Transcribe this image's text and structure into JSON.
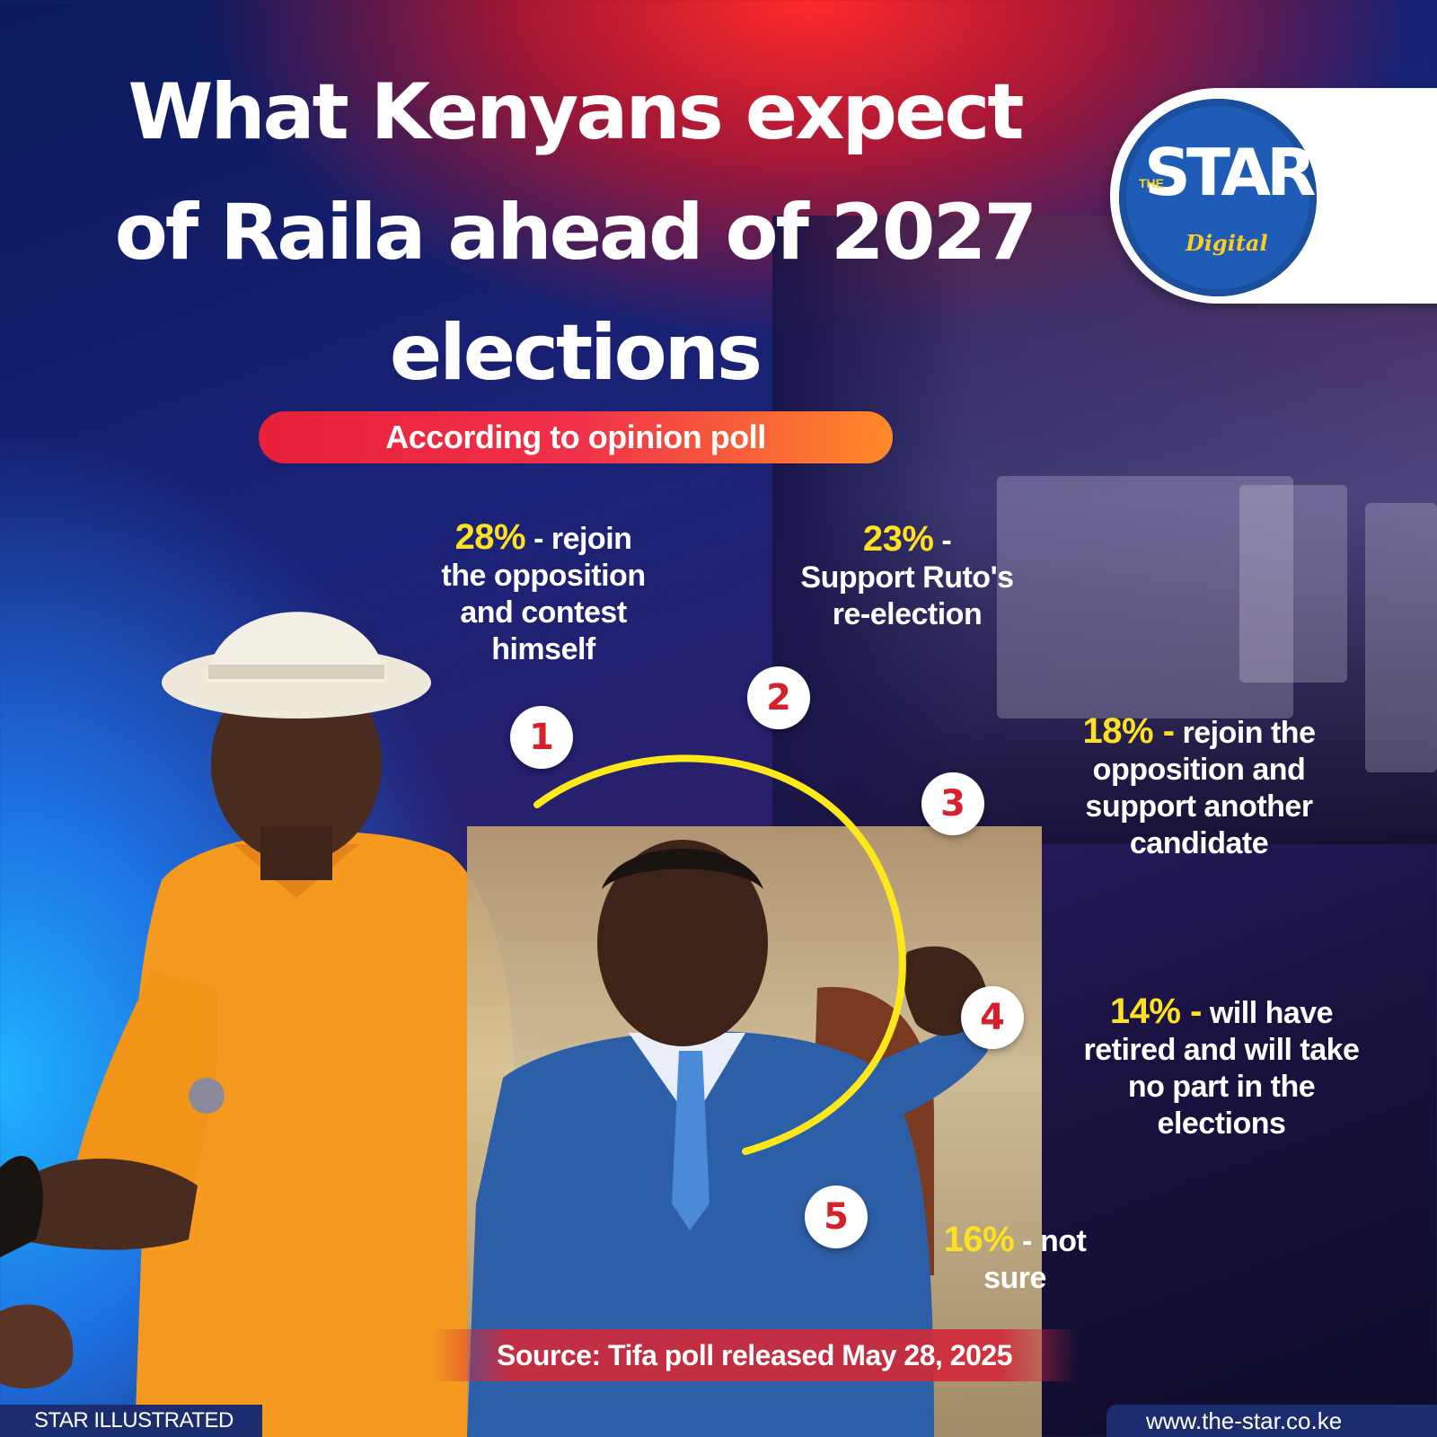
{
  "title": {
    "line1": "What Kenyans expect",
    "line2": "of Raila ahead of 2027",
    "line3": "elections"
  },
  "logo": {
    "the": "THE",
    "star": "STAR",
    "digital": "Digital"
  },
  "subtitle": "According to opinion poll",
  "poll": [
    {
      "number": "1",
      "percent": "28%",
      "text_line1": " - rejoin",
      "text_rest": [
        "the opposition",
        "and contest",
        "himself"
      ]
    },
    {
      "number": "2",
      "percent": "23%",
      "text_line1": " -",
      "text_rest": [
        "Support Ruto's",
        "re-election"
      ]
    },
    {
      "number": "3",
      "percent": "18% -",
      "text_line1": "  rejoin the",
      "text_rest": [
        "opposition and",
        "support another",
        "candidate"
      ]
    },
    {
      "number": "4",
      "percent": "14% -",
      "text_line1": "  will have",
      "text_rest": [
        "retired and will take",
        "no part in the",
        "elections"
      ]
    },
    {
      "number": "5",
      "percent": "16%",
      "text_line1": "  - not",
      "text_rest": [
        "sure"
      ]
    }
  ],
  "source": "Source: Tifa poll released May 28, 2025",
  "footer": {
    "left": "STAR ILLUSTRATED",
    "right": "www.the-star.co.ke"
  },
  "colors": {
    "accent_yellow": "#ffe11f",
    "number_red": "#d6202c",
    "footer_navy": "#1b2d6e"
  }
}
